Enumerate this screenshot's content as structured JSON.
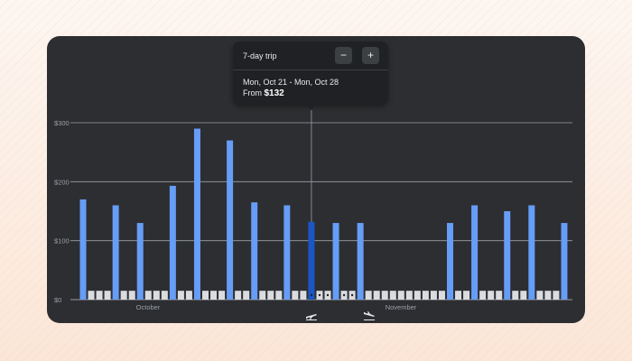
{
  "tooltip": {
    "title": "7-day trip",
    "minus_label": "−",
    "plus_label": "+",
    "dates": "Mon, Oct 21 - Mon, Oct 28",
    "price_prefix": "From ",
    "price": "$132"
  },
  "icons": {
    "departure": "airplane-departure-icon",
    "return": "airplane-arrival-icon"
  },
  "colors": {
    "background": "#2d2e31",
    "bar": "#669df6",
    "bar_selected": "#1a56c4",
    "bar_empty": "#dadce0",
    "gridline": "#9aa0a6",
    "axis_text": "#9aa0a6"
  },
  "chart_data": {
    "type": "bar",
    "ylim": [
      0,
      300
    ],
    "yticks": [
      0,
      100,
      200,
      300
    ],
    "ytick_labels": [
      "$0",
      "$100",
      "$200",
      "$300"
    ],
    "month_labels": [
      "October",
      "November"
    ],
    "selected_index": 28,
    "trip_range": [
      28,
      35
    ],
    "values": [
      170,
      15,
      15,
      15,
      160,
      15,
      15,
      130,
      15,
      15,
      15,
      193,
      15,
      15,
      290,
      15,
      15,
      15,
      270,
      15,
      15,
      165,
      15,
      15,
      15,
      160,
      15,
      15,
      132,
      15,
      15,
      130,
      15,
      15,
      130,
      15,
      15,
      15,
      15,
      15,
      15,
      15,
      15,
      15,
      15,
      130,
      15,
      15,
      160,
      15,
      15,
      15,
      150,
      15,
      15,
      160,
      15,
      15,
      15,
      130
    ],
    "has_price": [
      true,
      false,
      false,
      false,
      true,
      false,
      false,
      true,
      false,
      false,
      false,
      true,
      false,
      false,
      true,
      false,
      false,
      false,
      true,
      false,
      false,
      true,
      false,
      false,
      false,
      true,
      false,
      false,
      true,
      false,
      false,
      true,
      false,
      false,
      true,
      false,
      false,
      false,
      false,
      false,
      false,
      false,
      false,
      false,
      false,
      true,
      false,
      false,
      true,
      false,
      false,
      false,
      true,
      false,
      false,
      true,
      false,
      false,
      false,
      true
    ]
  }
}
